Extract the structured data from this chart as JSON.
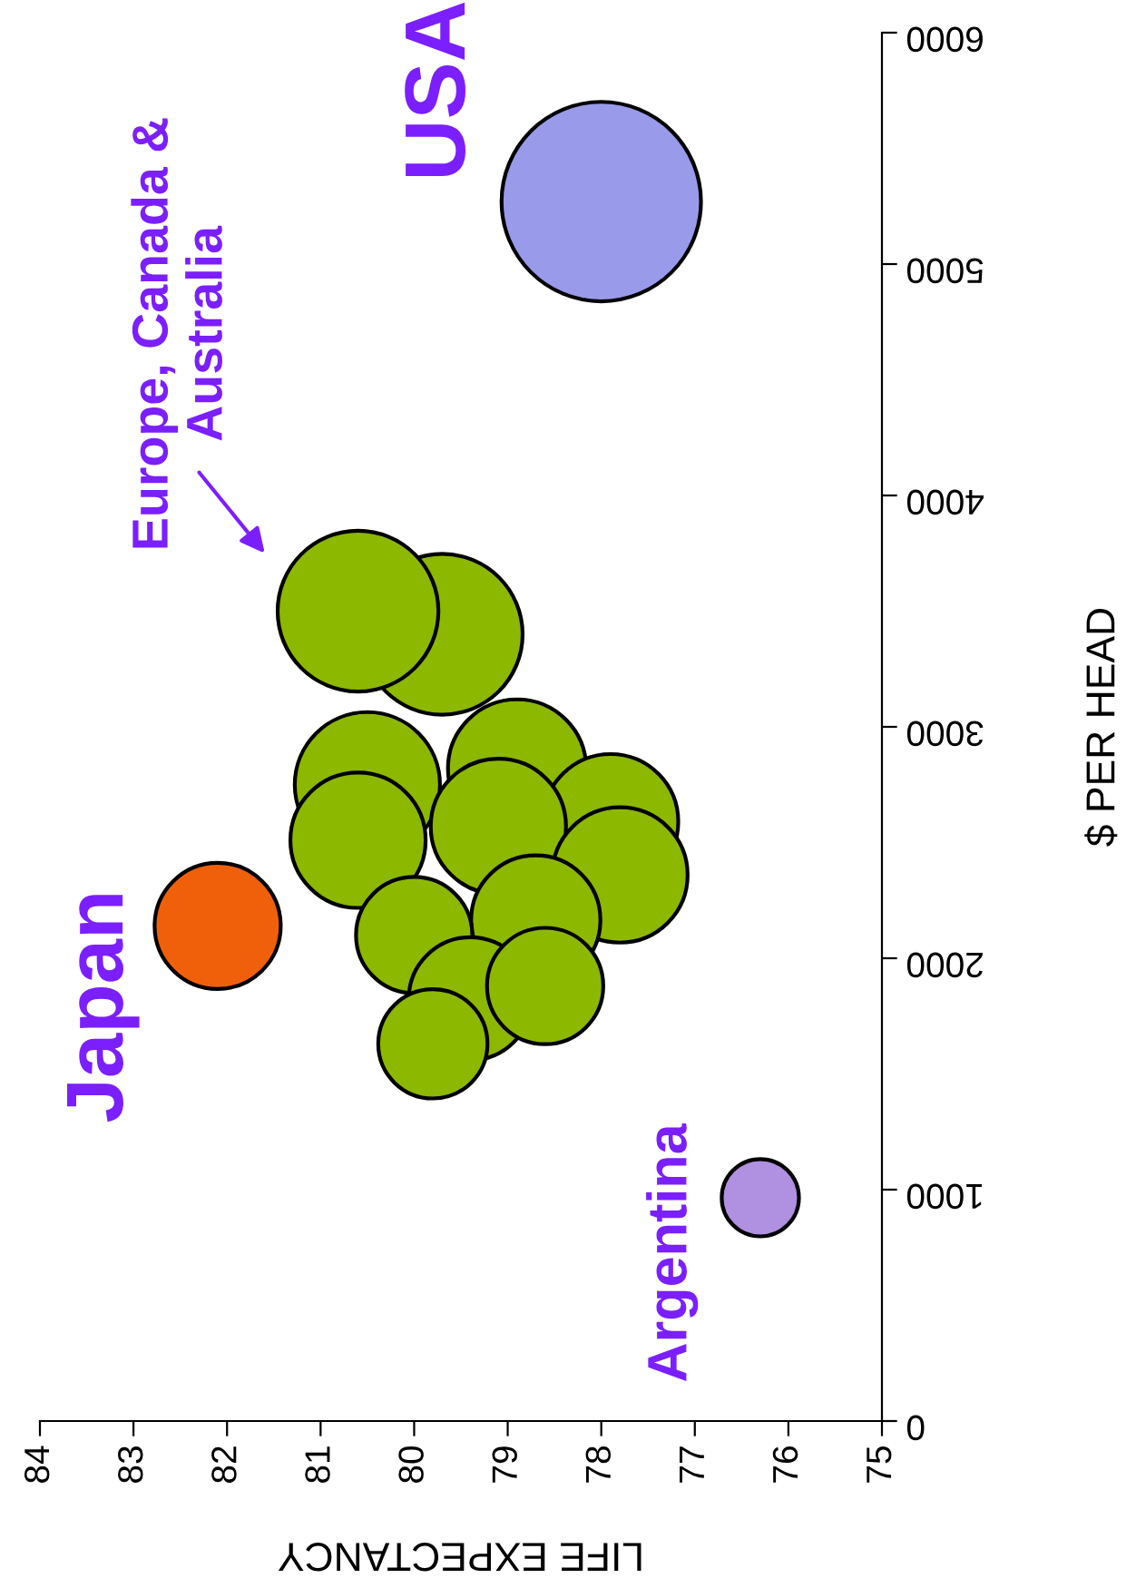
{
  "chart_data": {
    "type": "bubble",
    "xlabel": "LIFE EXPECTANCY",
    "ylabel": "$ PER HEAD",
    "xlim": [
      84,
      75
    ],
    "xticks": [
      84,
      83,
      82,
      81,
      80,
      79,
      78,
      77,
      76,
      75
    ],
    "ylim": [
      0,
      6000
    ],
    "yticks": [
      0,
      1000,
      2000,
      3000,
      4000,
      5000,
      6000
    ],
    "grid": false,
    "legend": false,
    "series": [
      {
        "name": "USA",
        "color": "#9a9aea",
        "x": [
          78.0
        ],
        "values": [
          5270
        ],
        "sizes": [
          1
        ]
      },
      {
        "name": "Europe, Canada &\nAustralia",
        "color": "#8cb800",
        "x": [
          79.7,
          80.6,
          78.9,
          80.5,
          77.9,
          79.1,
          80.6,
          77.8,
          78.7,
          80.0,
          79.4,
          78.6,
          79.8
        ],
        "values": [
          3400,
          3500,
          2820,
          2750,
          2590,
          2570,
          2510,
          2360,
          2165,
          2100,
          1825,
          1880,
          1630
        ],
        "sizes": [
          0.65,
          0.65,
          0.48,
          0.53,
          0.46,
          0.46,
          0.46,
          0.46,
          0.42,
          0.34,
          0.38,
          0.34,
          0.3
        ]
      },
      {
        "name": "Japan",
        "color": "#f0600a",
        "x": [
          82.1
        ],
        "values": [
          2140
        ],
        "sizes": [
          0.4
        ]
      },
      {
        "name": "Argentina",
        "color": "#b090e0",
        "x": [
          76.3
        ],
        "values": [
          965
        ],
        "sizes": [
          0.15
        ]
      }
    ]
  }
}
